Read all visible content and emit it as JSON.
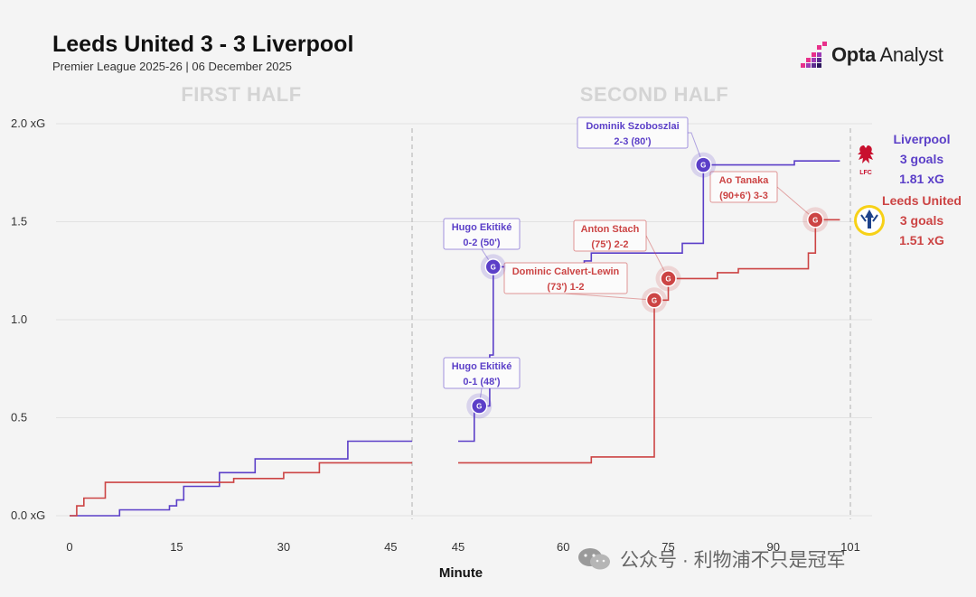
{
  "header": {
    "title": "Leeds United 3 - 3 Liverpool",
    "subtitle": "Premier League 2025-26 | 06 December 2025",
    "brand_bold": "Opta",
    "brand_light": "Analyst"
  },
  "watermark": {
    "text": "公众号 · 利物浦不只是冠军"
  },
  "colors": {
    "liverpool": "#5b3fc8",
    "leeds": "#cc4444",
    "grid": "#e2e2e2",
    "separator": "#bbbbbb"
  },
  "chart_data": {
    "type": "line",
    "title": "Leeds United 3 - 3 Liverpool",
    "xlabel": "Minute",
    "ylabel": "",
    "segment_labels": [
      "FIRST HALF",
      "SECOND HALF"
    ],
    "y_ticks": [
      {
        "v": 0,
        "label": "0.0 xG"
      },
      {
        "v": 0.5,
        "label": "0.5"
      },
      {
        "v": 1.0,
        "label": "1.0"
      },
      {
        "v": 1.5,
        "label": "1.5"
      },
      {
        "v": 2.0,
        "label": "2.0 xG"
      }
    ],
    "ylim": [
      0,
      2.0
    ],
    "first_half": {
      "xlim": [
        0,
        48
      ],
      "ticks": [
        0,
        15,
        30,
        45
      ],
      "end_marker": 48
    },
    "second_half": {
      "xlim": [
        45,
        101
      ],
      "ticks": [
        45,
        60,
        75,
        90,
        101
      ],
      "end_marker": 101
    },
    "series": [
      {
        "name": "Liverpool",
        "legend": {
          "name": "Liverpool",
          "goals": "3 goals",
          "xg": "1.81 xG"
        },
        "first_half": [
          [
            0,
            0
          ],
          [
            7,
            0
          ],
          [
            7,
            0.03
          ],
          [
            14,
            0.03
          ],
          [
            14,
            0.05
          ],
          [
            15,
            0.05
          ],
          [
            15,
            0.08
          ],
          [
            16,
            0.08
          ],
          [
            16,
            0.15
          ],
          [
            21,
            0.15
          ],
          [
            21,
            0.22
          ],
          [
            26,
            0.22
          ],
          [
            26,
            0.29
          ],
          [
            39,
            0.29
          ],
          [
            39,
            0.38
          ],
          [
            48,
            0.38
          ]
        ],
        "second_half": [
          [
            45,
            0.38
          ],
          [
            47.3,
            0.38
          ],
          [
            47.3,
            0.53
          ],
          [
            48,
            0.53
          ],
          [
            48,
            0.56
          ],
          [
            49.5,
            0.56
          ],
          [
            49.5,
            0.82
          ],
          [
            50,
            0.82
          ],
          [
            50,
            1.27
          ],
          [
            63,
            1.27
          ],
          [
            63,
            1.3
          ],
          [
            64,
            1.3
          ],
          [
            64,
            1.34
          ],
          [
            77,
            1.34
          ],
          [
            77,
            1.39
          ],
          [
            80,
            1.39
          ],
          [
            80,
            1.79
          ],
          [
            93,
            1.79
          ],
          [
            93,
            1.81
          ],
          [
            99.5,
            1.81
          ]
        ],
        "goals": [
          {
            "minute": 48,
            "xg": 0.56,
            "label": [
              "Hugo Ekitiké",
              "0-1 (48')"
            ]
          },
          {
            "minute": 50,
            "xg": 1.27,
            "label": [
              "Hugo Ekitiké",
              "0-2 (50')"
            ]
          },
          {
            "minute": 80,
            "xg": 1.79,
            "label": [
              "Dominik Szoboszlai",
              "2-3 (80')"
            ]
          }
        ]
      },
      {
        "name": "Leeds United",
        "legend": {
          "name": "Leeds United",
          "goals": "3 goals",
          "xg": "1.51 xG"
        },
        "first_half": [
          [
            0,
            0
          ],
          [
            1,
            0
          ],
          [
            1,
            0.05
          ],
          [
            2,
            0.05
          ],
          [
            2,
            0.09
          ],
          [
            5,
            0.09
          ],
          [
            5,
            0.17
          ],
          [
            23,
            0.17
          ],
          [
            23,
            0.19
          ],
          [
            30,
            0.19
          ],
          [
            30,
            0.22
          ],
          [
            35,
            0.22
          ],
          [
            35,
            0.27
          ],
          [
            48,
            0.27
          ]
        ],
        "second_half": [
          [
            45,
            0.27
          ],
          [
            64,
            0.27
          ],
          [
            64,
            0.3
          ],
          [
            73,
            0.3
          ],
          [
            73,
            1.1
          ],
          [
            75,
            1.1
          ],
          [
            75,
            1.21
          ],
          [
            82,
            1.21
          ],
          [
            82,
            1.24
          ],
          [
            85,
            1.24
          ],
          [
            85,
            1.26
          ],
          [
            95,
            1.26
          ],
          [
            95,
            1.34
          ],
          [
            96,
            1.34
          ],
          [
            96,
            1.51
          ],
          [
            99.5,
            1.51
          ]
        ],
        "goals": [
          {
            "minute": 73,
            "xg": 1.1,
            "label": [
              "Dominic Calvert-Lewin",
              "(73') 1-2"
            ]
          },
          {
            "minute": 75,
            "xg": 1.21,
            "label": [
              "Anton Stach",
              "(75') 2-2"
            ]
          },
          {
            "minute": 96,
            "xg": 1.51,
            "label": [
              "Ao Tanaka",
              "(90+6') 3-3"
            ]
          }
        ]
      }
    ],
    "goal_marker": "G",
    "club_badges": [
      "liverpool-crest-icon",
      "leeds-crest-icon"
    ]
  }
}
